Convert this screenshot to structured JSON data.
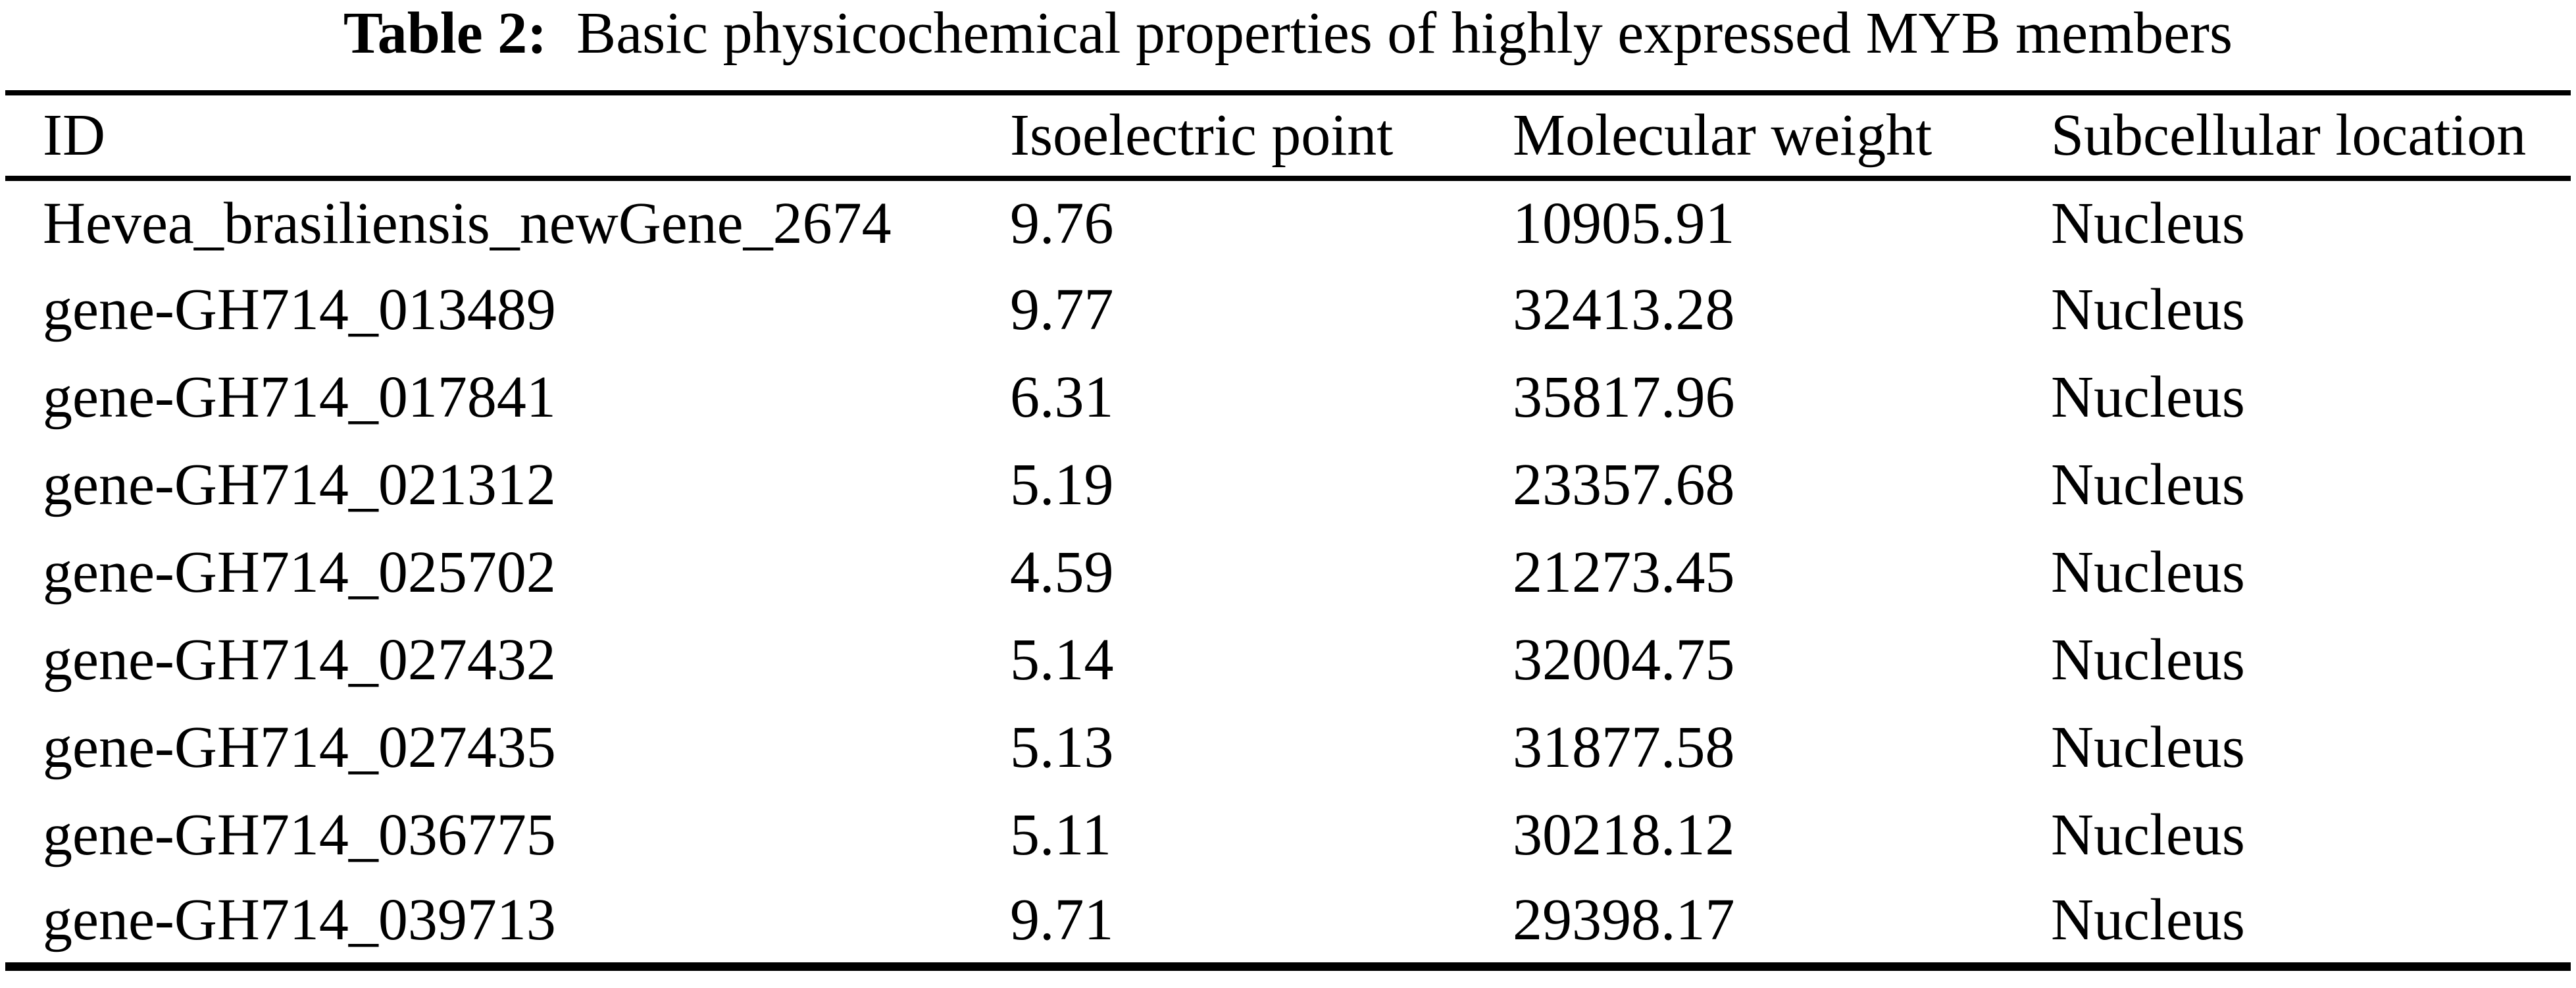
{
  "caption": {
    "label": "Table 2:",
    "text": "Basic physicochemical properties of highly expressed MYB members"
  },
  "table": {
    "headers": [
      "ID",
      "Isoelectric point",
      "Molecular weight",
      "Subcellular location"
    ],
    "rows": [
      {
        "id": "Hevea_brasiliensis_newGene_2674",
        "isoelectric_point": "9.76",
        "molecular_weight": "10905.91",
        "subcellular_location": "Nucleus"
      },
      {
        "id": "gene-GH714_013489",
        "isoelectric_point": "9.77",
        "molecular_weight": "32413.28",
        "subcellular_location": "Nucleus"
      },
      {
        "id": "gene-GH714_017841",
        "isoelectric_point": "6.31",
        "molecular_weight": "35817.96",
        "subcellular_location": "Nucleus"
      },
      {
        "id": "gene-GH714_021312",
        "isoelectric_point": "5.19",
        "molecular_weight": "23357.68",
        "subcellular_location": "Nucleus"
      },
      {
        "id": "gene-GH714_025702",
        "isoelectric_point": "4.59",
        "molecular_weight": "21273.45",
        "subcellular_location": "Nucleus"
      },
      {
        "id": "gene-GH714_027432",
        "isoelectric_point": "5.14",
        "molecular_weight": "32004.75",
        "subcellular_location": "Nucleus"
      },
      {
        "id": "gene-GH714_027435",
        "isoelectric_point": "5.13",
        "molecular_weight": "31877.58",
        "subcellular_location": "Nucleus"
      },
      {
        "id": "gene-GH714_036775",
        "isoelectric_point": "5.11",
        "molecular_weight": "30218.12",
        "subcellular_location": "Nucleus"
      },
      {
        "id": "gene-GH714_039713",
        "isoelectric_point": "9.71",
        "molecular_weight": "29398.17",
        "subcellular_location": "Nucleus"
      }
    ]
  }
}
